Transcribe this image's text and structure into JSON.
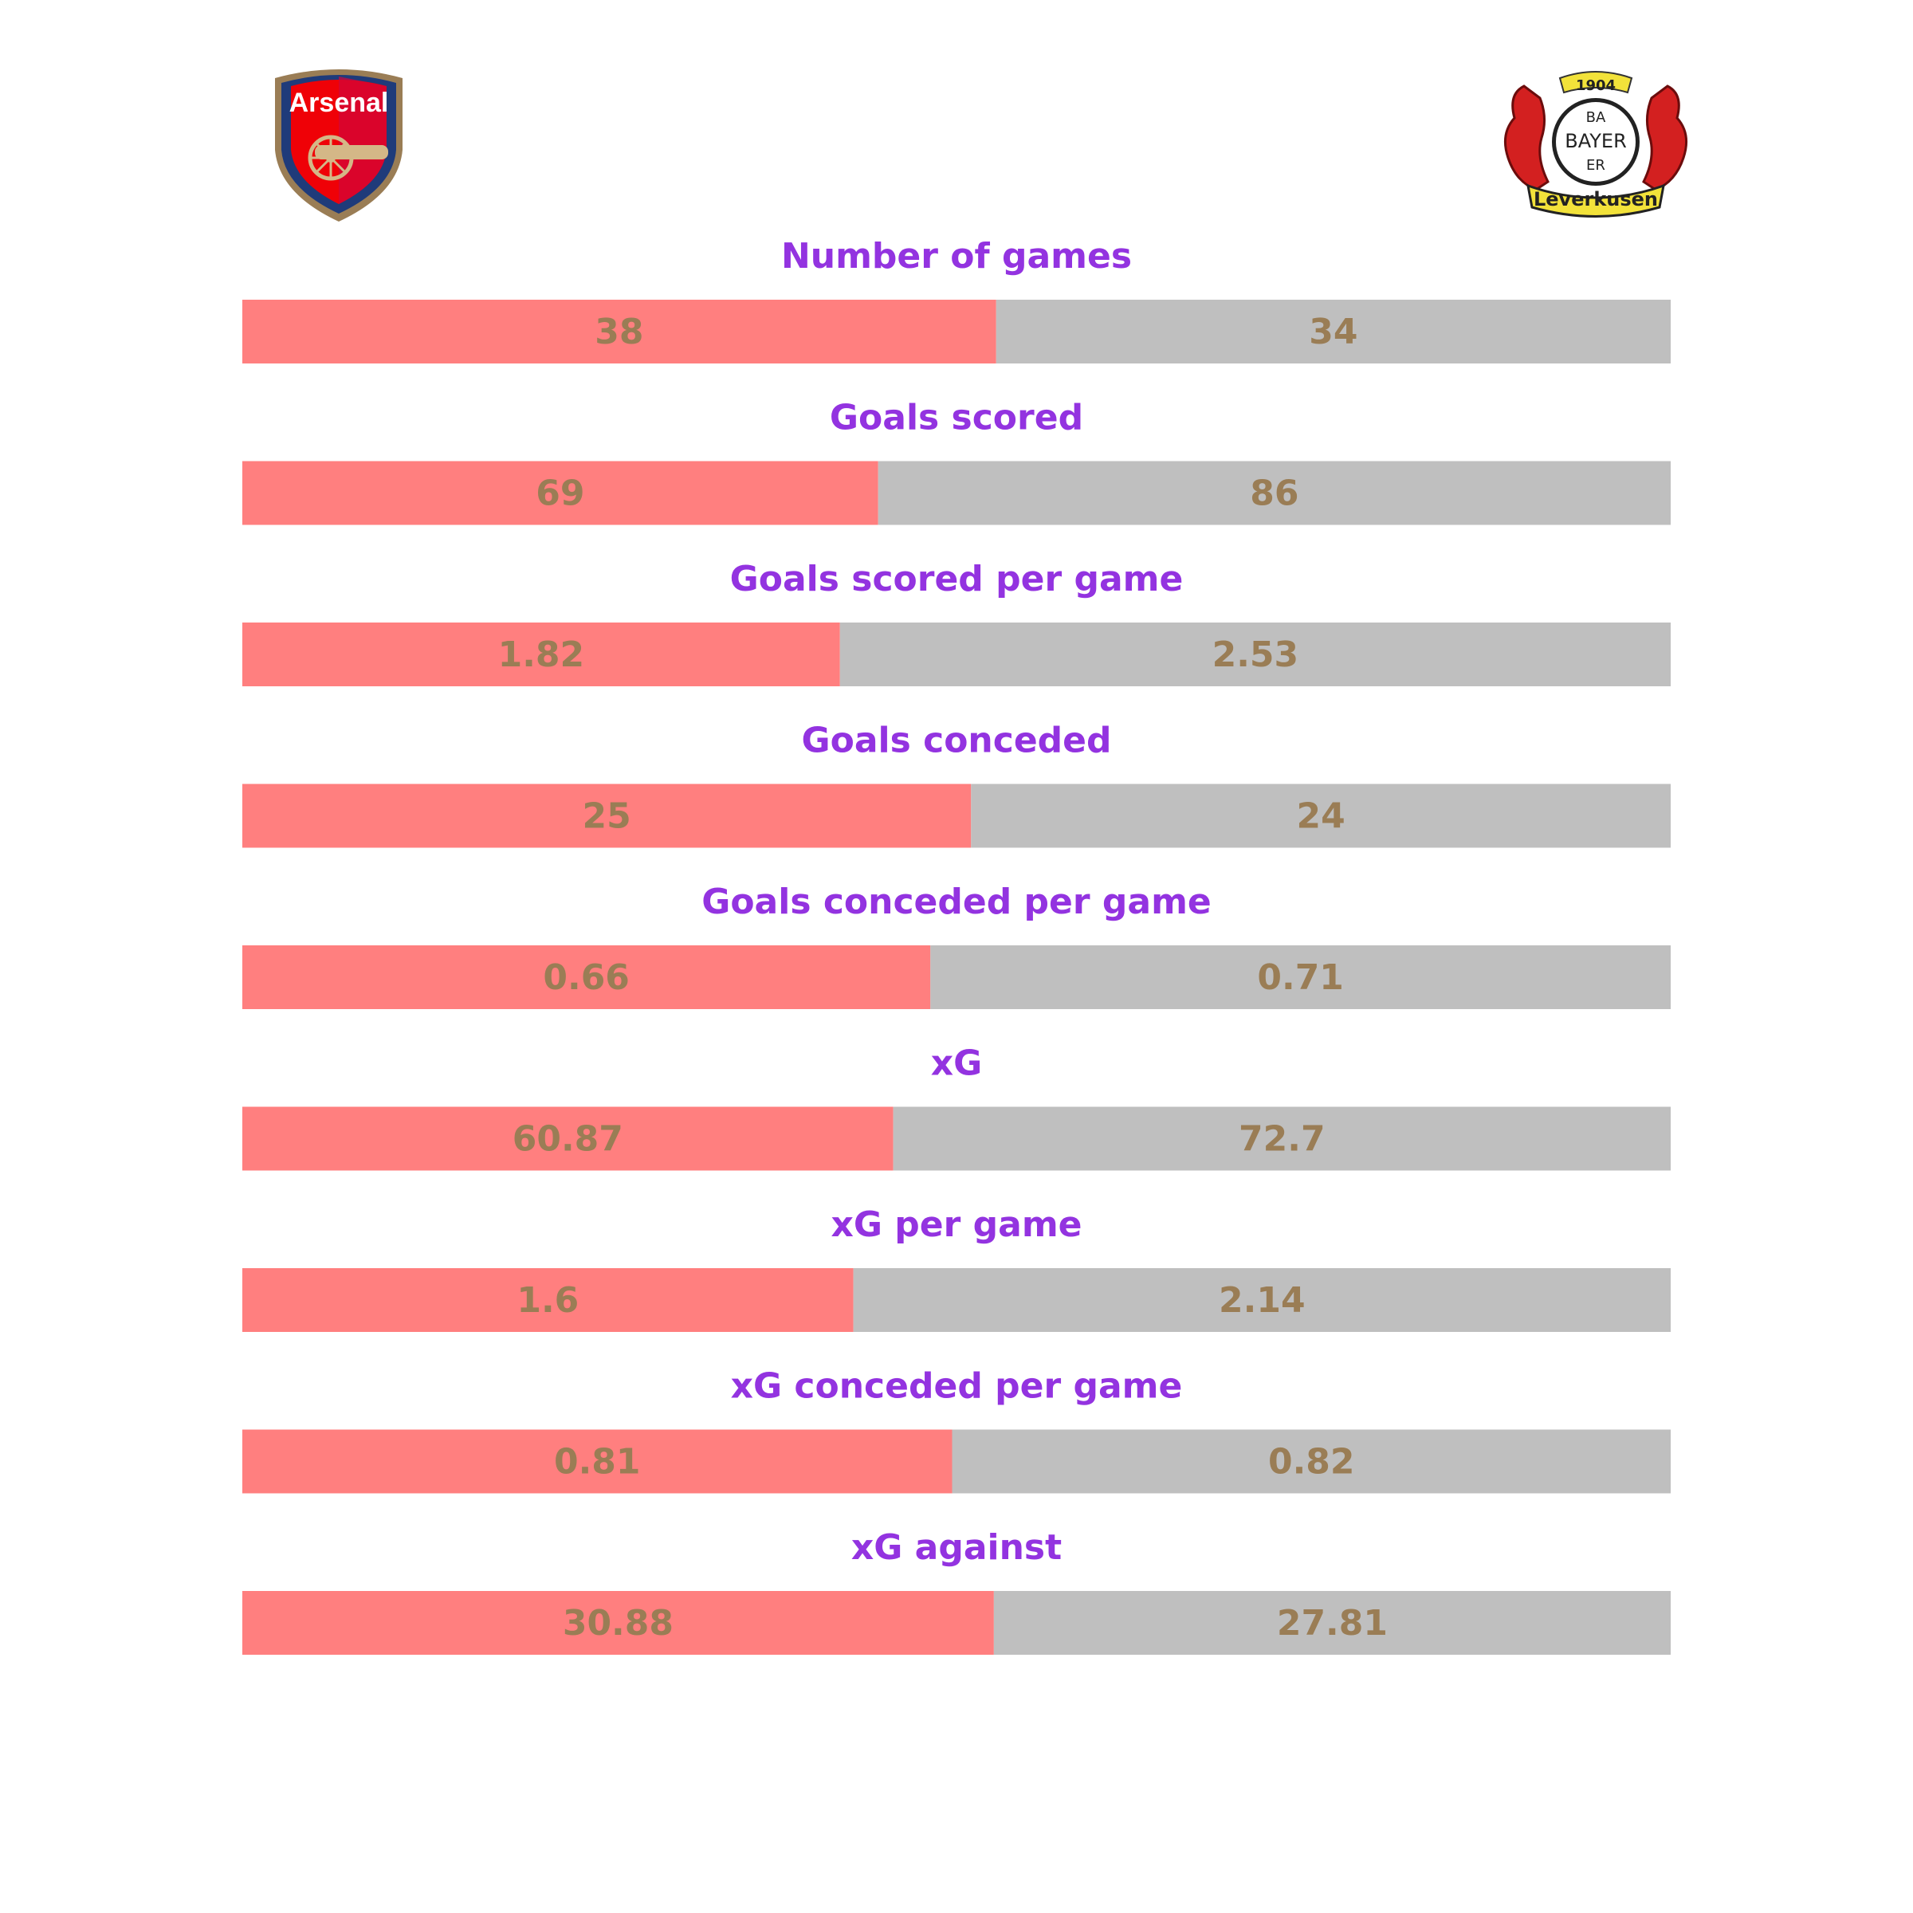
{
  "teams": {
    "left": {
      "crest_text": "Arsenal",
      "color": "#ff7f7f"
    },
    "right": {
      "crest_text_year": "1904",
      "crest_text_center": "BAYER",
      "crest_text_vertical_top": "BA",
      "crest_text_vertical_bottom": "ER",
      "crest_text_banner": "Leverkusen",
      "color": "#bfbfbf"
    }
  },
  "colors": {
    "title": "#9333e0",
    "value_text": "#9a7d55",
    "left_bar": "#ff7f7f",
    "right_bar": "#bfbfbf"
  },
  "chart_data": {
    "type": "bar",
    "orientation": "horizontal-stacked-share",
    "categories": [
      "Number of games",
      "Goals scored",
      "Goals scored per game",
      "Goals conceded",
      "Goals conceded per game",
      "xG",
      "xG per game",
      "xG conceded per game",
      "xG against"
    ],
    "series": [
      {
        "values": [
          38,
          69,
          1.82,
          25,
          0.66,
          60.87,
          1.6,
          0.81,
          30.88
        ],
        "labels": [
          "38",
          "69",
          "1.82",
          "25",
          "0.66",
          "60.87",
          "1.6",
          "0.81",
          "30.88"
        ]
      },
      {
        "values": [
          34,
          86,
          2.53,
          24,
          0.71,
          72.7,
          2.14,
          0.82,
          27.81
        ],
        "labels": [
          "34",
          "86",
          "2.53",
          "24",
          "0.71",
          "72.7",
          "2.14",
          "0.82",
          "27.81"
        ]
      }
    ],
    "legend": "none",
    "grid": false
  }
}
